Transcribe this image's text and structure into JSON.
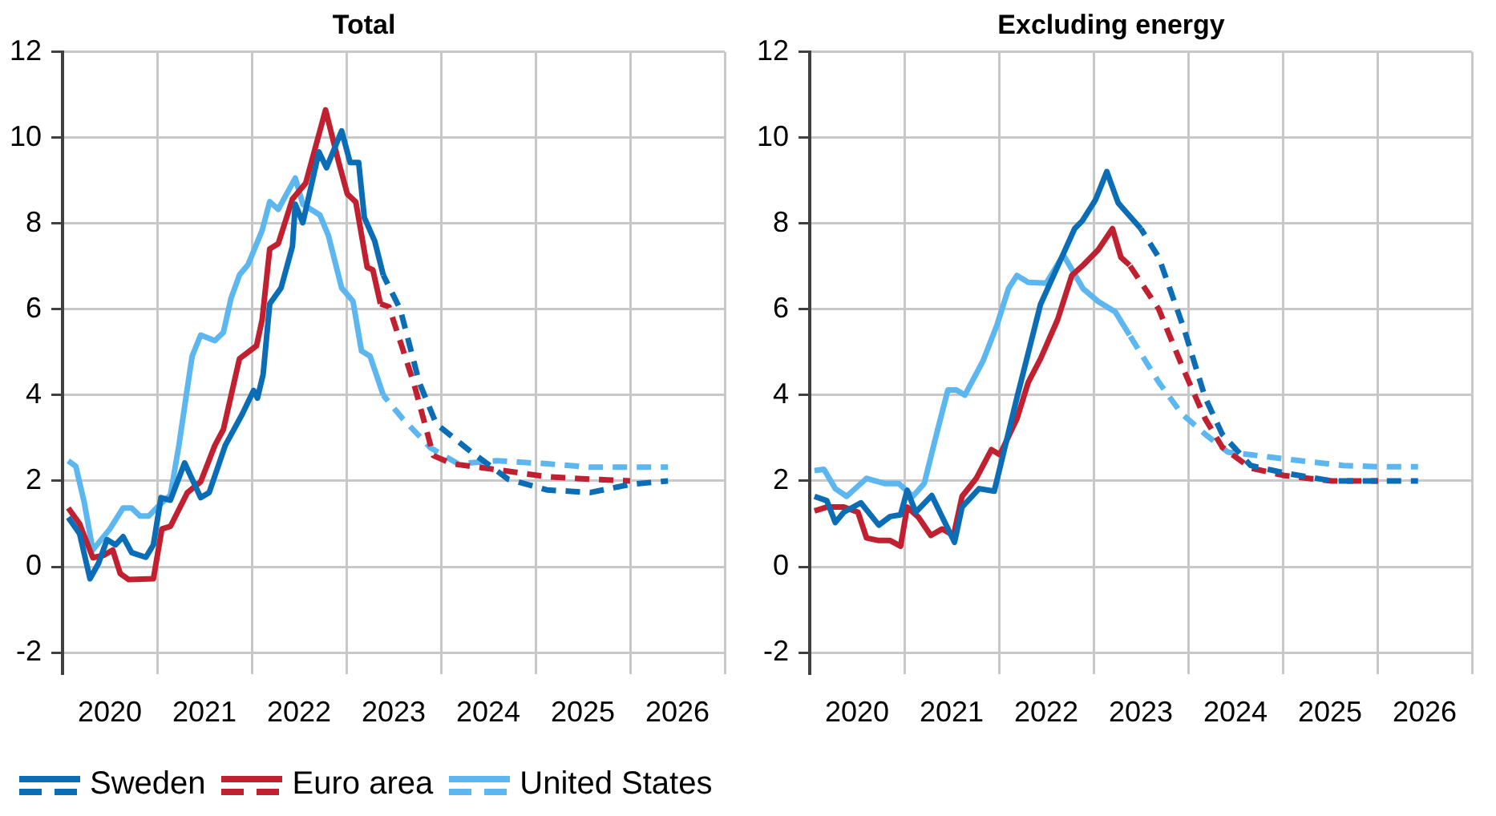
{
  "chart_data": [
    {
      "type": "line",
      "title": "Total",
      "xlim": [
        2020,
        2027
      ],
      "ylim": [
        -2.5,
        12
      ],
      "yticks": [
        -2,
        0,
        2,
        4,
        6,
        8,
        10,
        12
      ],
      "xticks": [
        {
          "value": 2020,
          "label": null
        },
        {
          "value": 2020.5,
          "label": "2020"
        },
        {
          "value": 2021,
          "label": null
        },
        {
          "value": 2021.5,
          "label": "2021"
        },
        {
          "value": 2022,
          "label": null
        },
        {
          "value": 2022.5,
          "label": "2022"
        },
        {
          "value": 2023,
          "label": null
        },
        {
          "value": 2023.5,
          "label": "2023"
        },
        {
          "value": 2024,
          "label": null
        },
        {
          "value": 2024.5,
          "label": "2024"
        },
        {
          "value": 2025,
          "label": null
        },
        {
          "value": 2025.5,
          "label": "2025"
        },
        {
          "value": 2026,
          "label": null
        },
        {
          "value": 2026.5,
          "label": "2026"
        },
        {
          "value": 2027,
          "label": null
        }
      ],
      "grid": true,
      "legend": "bottom",
      "series": [
        {
          "name": "Sweden",
          "color": "#0a6db5",
          "x": [
            2020.06,
            2020.18,
            2020.29,
            2020.38,
            2020.47,
            2020.56,
            2020.64,
            2020.73,
            2020.88,
            2020.96,
            2021.04,
            2021.14,
            2021.29,
            2021.46,
            2021.55,
            2021.72,
            2021.9,
            2022.02,
            2022.06,
            2022.12,
            2022.19,
            2022.31,
            2022.43,
            2022.46,
            2022.54,
            2022.71,
            2022.79,
            2022.95,
            2023.04,
            2023.13,
            2023.19,
            2023.3,
            2023.39
          ],
          "values": [
            1.15,
            0.77,
            -0.28,
            0.08,
            0.63,
            0.51,
            0.7,
            0.33,
            0.22,
            0.51,
            1.61,
            1.55,
            2.42,
            1.61,
            1.73,
            2.83,
            3.56,
            4.11,
            3.93,
            4.48,
            6.13,
            6.5,
            7.47,
            8.45,
            8.02,
            9.67,
            9.3,
            10.16,
            9.42,
            9.42,
            8.14,
            7.59,
            6.8
          ]
        },
        {
          "name": "Euro area",
          "color": "#c0202f",
          "x": [
            2020.06,
            2020.18,
            2020.32,
            2020.44,
            2020.53,
            2020.61,
            2020.7,
            2020.96,
            2021.05,
            2021.14,
            2021.32,
            2021.46,
            2021.61,
            2021.7,
            2021.87,
            2022.05,
            2022.11,
            2022.19,
            2022.28,
            2022.43,
            2022.57,
            2022.78,
            2022.92,
            2023.01,
            2023.1,
            2023.22,
            2023.28,
            2023.36
          ],
          "values": [
            1.37,
            1.0,
            0.21,
            0.27,
            0.39,
            -0.16,
            -0.3,
            -0.28,
            0.88,
            0.94,
            1.73,
            1.98,
            2.83,
            3.2,
            4.85,
            5.15,
            5.76,
            7.41,
            7.53,
            8.57,
            8.94,
            10.65,
            9.42,
            8.69,
            8.5,
            6.98,
            6.92,
            6.13
          ]
        },
        {
          "name": "United States",
          "color": "#5cb6f0",
          "x": [
            2020.06,
            2020.14,
            2020.23,
            2020.32,
            2020.5,
            2020.64,
            2020.73,
            2020.82,
            2020.91,
            2021.02,
            2021.14,
            2021.23,
            2021.32,
            2021.37,
            2021.46,
            2021.61,
            2021.7,
            2021.78,
            2021.87,
            2021.96,
            2022.11,
            2022.19,
            2022.28,
            2022.46,
            2022.54,
            2022.72,
            2022.81,
            2022.95,
            2023.07,
            2023.16,
            2023.25,
            2023.39
          ],
          "values": [
            2.47,
            2.34,
            1.49,
            0.39,
            0.88,
            1.37,
            1.37,
            1.18,
            1.18,
            1.43,
            1.67,
            2.83,
            4.18,
            4.91,
            5.4,
            5.27,
            5.46,
            6.25,
            6.8,
            7.04,
            7.84,
            8.51,
            8.33,
            9.06,
            8.45,
            8.2,
            7.72,
            6.5,
            6.19,
            5.03,
            4.91,
            4.0
          ]
        },
        {
          "color": "#0a6db5",
          "line_style": "dashed",
          "x": [
            2023.39,
            2023.57,
            2023.77,
            2023.95,
            2024.3,
            2024.71,
            2025.12,
            2025.58,
            2026.0,
            2026.4
          ],
          "values": [
            6.8,
            6.0,
            4.3,
            3.33,
            2.71,
            2.04,
            1.79,
            1.73,
            1.92,
            2.0
          ]
        },
        {
          "color": "#c0202f",
          "line_style": "dashed",
          "x": [
            2023.36,
            2023.45,
            2023.71,
            2023.92,
            2024.12,
            2024.53,
            2025.12,
            2025.58,
            2026.0
          ],
          "values": [
            6.13,
            6.06,
            4.3,
            2.59,
            2.4,
            2.28,
            2.1,
            2.04,
            2.0
          ]
        },
        {
          "color": "#5cb6f0",
          "line_style": "dashed",
          "x": [
            2023.39,
            2023.6,
            2023.89,
            2024.18,
            2024.59,
            2025.12,
            2025.58,
            2026.4
          ],
          "values": [
            4.0,
            3.44,
            2.77,
            2.4,
            2.47,
            2.4,
            2.32,
            2.32
          ]
        }
      ]
    },
    {
      "type": "line",
      "title": "Excluding energy",
      "xlim": [
        2020,
        2027
      ],
      "ylim": [
        -2.5,
        12
      ],
      "yticks": [
        -2,
        0,
        2,
        4,
        6,
        8,
        10,
        12
      ],
      "xticks": [
        {
          "value": 2020,
          "label": null
        },
        {
          "value": 2020.5,
          "label": "2020"
        },
        {
          "value": 2021,
          "label": null
        },
        {
          "value": 2021.5,
          "label": "2021"
        },
        {
          "value": 2022,
          "label": null
        },
        {
          "value": 2022.5,
          "label": "2022"
        },
        {
          "value": 2023,
          "label": null
        },
        {
          "value": 2023.5,
          "label": "2023"
        },
        {
          "value": 2024,
          "label": null
        },
        {
          "value": 2024.5,
          "label": "2024"
        },
        {
          "value": 2025,
          "label": null
        },
        {
          "value": 2025.5,
          "label": "2025"
        },
        {
          "value": 2026,
          "label": null
        },
        {
          "value": 2026.5,
          "label": "2026"
        },
        {
          "value": 2027,
          "label": null
        }
      ],
      "grid": true,
      "legend": "bottom",
      "series": [
        {
          "name": "Sweden",
          "color": "#0a6db5",
          "x": [
            2020.05,
            2020.18,
            2020.27,
            2020.36,
            2020.54,
            2020.73,
            2020.85,
            2020.96,
            2021.03,
            2021.12,
            2021.29,
            2021.53,
            2021.61,
            2021.79,
            2021.95,
            2022.19,
            2022.44,
            2022.59,
            2022.8,
            2022.88,
            2023.02,
            2023.14,
            2023.26,
            2023.38,
            2023.5
          ],
          "values": [
            1.64,
            1.54,
            1.03,
            1.27,
            1.49,
            0.97,
            1.17,
            1.21,
            1.78,
            1.27,
            1.66,
            0.57,
            1.39,
            1.82,
            1.76,
            3.94,
            6.12,
            6.85,
            7.88,
            8.06,
            8.55,
            9.21,
            8.48,
            8.18,
            7.88
          ]
        },
        {
          "name": "Euro area",
          "color": "#c0202f",
          "x": [
            2020.05,
            2020.18,
            2020.36,
            2020.51,
            2020.6,
            2020.73,
            2020.85,
            2020.96,
            2021.03,
            2021.15,
            2021.28,
            2021.4,
            2021.52,
            2021.61,
            2021.76,
            2021.92,
            2022.01,
            2022.19,
            2022.31,
            2022.44,
            2022.62,
            2022.77,
            2022.89,
            2023.05,
            2023.2,
            2023.29,
            2023.38
          ],
          "values": [
            1.3,
            1.39,
            1.39,
            1.27,
            0.67,
            0.61,
            0.61,
            0.48,
            1.39,
            1.15,
            0.73,
            0.88,
            0.73,
            1.64,
            2.06,
            2.73,
            2.61,
            3.45,
            4.3,
            4.85,
            5.76,
            6.79,
            7.03,
            7.39,
            7.88,
            7.21,
            7.03
          ]
        },
        {
          "name": "United States",
          "color": "#5cb6f0",
          "x": [
            2020.05,
            2020.15,
            2020.27,
            2020.39,
            2020.6,
            2020.79,
            2020.94,
            2021.09,
            2021.21,
            2021.34,
            2021.46,
            2021.55,
            2021.64,
            2021.83,
            2021.98,
            2022.1,
            2022.19,
            2022.31,
            2022.5,
            2022.68,
            2022.89,
            2023.05,
            2023.23,
            2023.38
          ],
          "values": [
            2.24,
            2.27,
            1.82,
            1.64,
            2.06,
            1.94,
            1.94,
            1.64,
            1.94,
            3.09,
            4.12,
            4.12,
            4.0,
            4.79,
            5.64,
            6.48,
            6.79,
            6.63,
            6.61,
            7.27,
            6.48,
            6.18,
            5.94,
            5.4
          ]
        },
        {
          "color": "#0a6db5",
          "line_style": "dashed",
          "x": [
            2023.5,
            2023.69,
            2023.96,
            2024.18,
            2024.36,
            2024.66,
            2025.03,
            2025.52,
            2026.01,
            2026.43
          ],
          "values": [
            7.88,
            7.21,
            5.52,
            3.94,
            3.09,
            2.36,
            2.18,
            2.0,
            2.0,
            2.0
          ]
        },
        {
          "color": "#c0202f",
          "line_style": "dashed",
          "x": [
            2023.38,
            2023.69,
            2023.96,
            2024.18,
            2024.36,
            2024.66,
            2025.03,
            2025.52,
            2026.01
          ],
          "values": [
            7.03,
            6.0,
            4.55,
            3.45,
            2.79,
            2.3,
            2.12,
            2.0,
            2.0
          ]
        },
        {
          "color": "#5cb6f0",
          "line_style": "dashed",
          "x": [
            2023.38,
            2023.5,
            2023.69,
            2023.93,
            2024.18,
            2024.42,
            2024.66,
            2025.15,
            2025.64,
            2026.01,
            2026.43
          ],
          "values": [
            5.4,
            4.97,
            4.3,
            3.57,
            3.09,
            2.67,
            2.61,
            2.48,
            2.36,
            2.33,
            2.33
          ]
        }
      ]
    }
  ]
}
